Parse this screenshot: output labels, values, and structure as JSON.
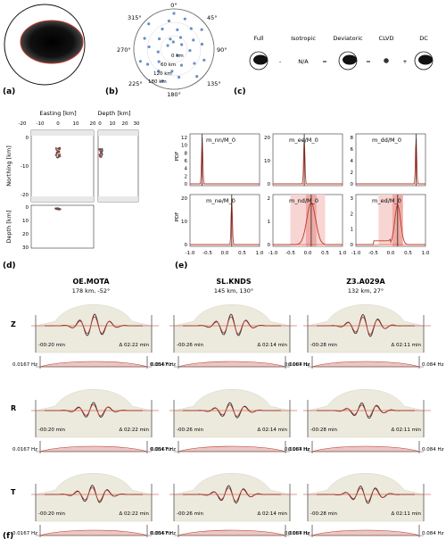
{
  "panel_labels": {
    "a": "(a)",
    "b": "(b)",
    "c": "(c)",
    "d": "(d)",
    "e": "(e)",
    "f": "(f)"
  },
  "polar": {
    "azimuth_ticks": [
      "0°",
      "45°",
      "90°",
      "135°",
      "180°",
      "225°",
      "270°",
      "315°"
    ],
    "distance_ticks": [
      "0 km",
      "60 km",
      "120 km",
      "180 km"
    ]
  },
  "decomposition": {
    "labels": [
      "Full",
      "Isotropic",
      "Deviatoric",
      "CLVD",
      "DC"
    ],
    "operators": [
      "-",
      "=",
      "=",
      "+"
    ],
    "isotropic_value": "N/A"
  },
  "location": {
    "easting_label": "Easting [km]",
    "depth_label_top": "Depth [km]",
    "northing_label": "Northing [km]",
    "depth_label_side": "Depth [km]",
    "easting_ticks": [
      "-20",
      "-10",
      "0",
      "10",
      "20"
    ],
    "depth_ticks_top": [
      "0",
      "10",
      "20",
      "30"
    ],
    "northing_ticks": [
      "0",
      "-10",
      "-20"
    ],
    "depth_ticks_side": [
      "0",
      "10",
      "20",
      "30"
    ]
  },
  "pdf": {
    "ylabel": "PDF",
    "xticks": [
      "-1.0",
      "-0.5",
      "0.0",
      "0.5",
      "1.0"
    ],
    "panels": [
      {
        "label": "m_nn/M_0",
        "yticks": [
          "0",
          "2",
          "4",
          "6",
          "8",
          "10",
          "12"
        ]
      },
      {
        "label": "m_ee/M_0",
        "yticks": [
          "0",
          "10",
          "20"
        ]
      },
      {
        "label": "m_dd/M_0",
        "yticks": [
          "0",
          "2",
          "4",
          "6",
          "8"
        ]
      },
      {
        "label": "m_ne/M_0",
        "yticks": [
          "0",
          "10",
          "20"
        ]
      },
      {
        "label": "m_nd/M_0",
        "yticks": [
          "0",
          "1",
          "2"
        ]
      },
      {
        "label": "m_ed/M_0",
        "yticks": [
          "0",
          "1",
          "2",
          "3"
        ]
      }
    ]
  },
  "waveforms": {
    "stations": [
      {
        "name": "OE.MOTA",
        "info": "178 km, -52°",
        "start": "-00:20 min",
        "delta": "Δ 02:22 min"
      },
      {
        "name": "SL.KNDS",
        "info": "145 km, 130°",
        "start": "-00:26 min",
        "delta": "Δ 02:14 min"
      },
      {
        "name": "Z3.A029A",
        "info": "132 km, 27°",
        "start": "-00:28 min",
        "delta": "Δ 02:11 min"
      }
    ],
    "components": [
      "Z",
      "R",
      "T"
    ],
    "freq_low": "0.0167 Hz",
    "freq_high": "0.084 Hz"
  },
  "colors": {
    "observed": "#222222",
    "synthetic": "#c0392b",
    "taper": "#ece9dd",
    "beach_dark": "#111111"
  }
}
